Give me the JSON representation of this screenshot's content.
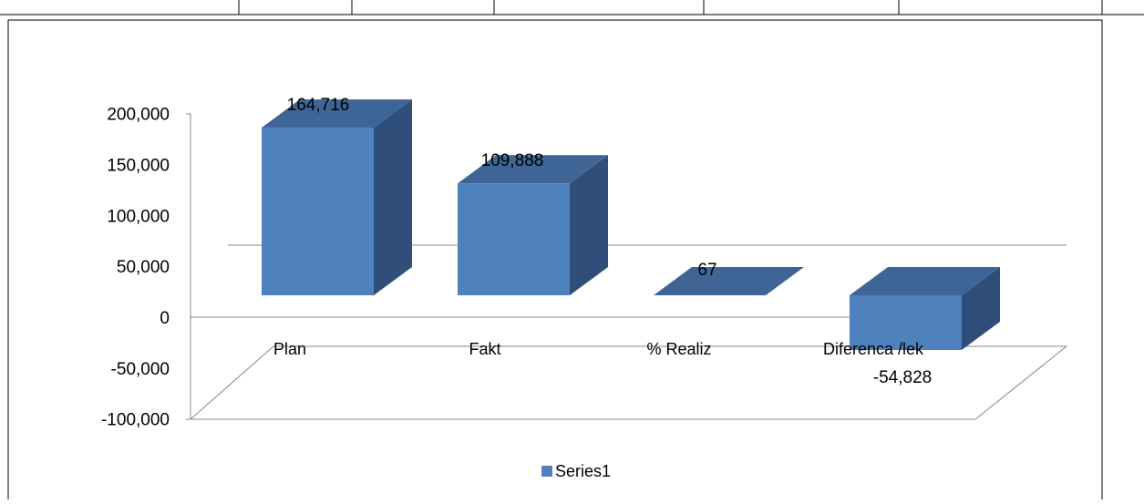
{
  "chart_data": {
    "type": "bar",
    "style": "3d-column",
    "categories": [
      "Plan",
      "Fakt",
      "% Realiz",
      "Diferenca /lek"
    ],
    "series": [
      {
        "name": "Series1",
        "values": [
          164716,
          109888,
          67,
          -54828
        ]
      }
    ],
    "data_labels": [
      "164,716",
      "109,888",
      "67",
      "-54,828"
    ],
    "y_ticks": [
      "200,000",
      "150,000",
      "100,000",
      "50,000",
      "0",
      "-50,000",
      "-100,000"
    ],
    "ylim": [
      -100000,
      200000
    ],
    "legend_position": "bottom",
    "colors": {
      "bar_front": "#4f81bd",
      "bar_side": "#2f4f7a",
      "bar_top": "#3e6595",
      "axis": "#888888"
    }
  }
}
